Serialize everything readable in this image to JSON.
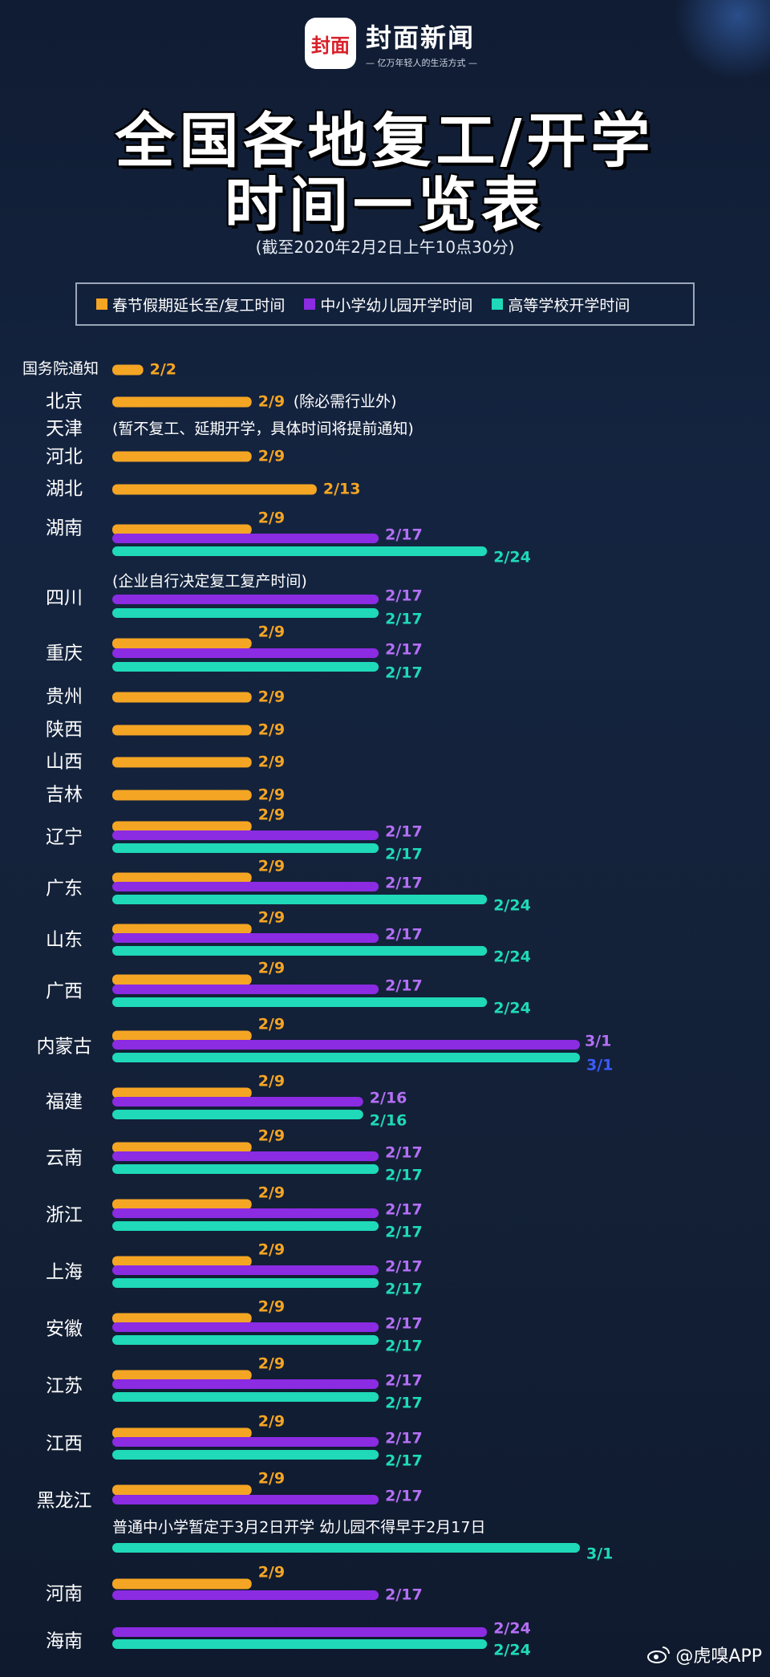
{
  "logo": {
    "mark": "封面",
    "name": "封面新闻",
    "slogan": "— 亿万年轻人的生活方式 —"
  },
  "title": {
    "line1": "全国各地复工/开学",
    "line2": "时间一览表"
  },
  "subtitle": "(截至2020年2月2日上午10点30分)",
  "legend": [
    {
      "label": "春节假期延长至/复工时间",
      "color": "#f5a524"
    },
    {
      "label": "中小学幼儿园开学时间",
      "color": "#8b2be2"
    },
    {
      "label": "高等学校开学时间",
      "color": "#1fd9b8"
    }
  ],
  "watermark": "@虎嗅APP",
  "chart_data": {
    "type": "bar",
    "title": "全国各地复工/开学时间一览表",
    "unit": "date (month/day, 2020)",
    "series": [
      "春节假期延长至/复工时间",
      "中小学幼儿园开学时间",
      "高等学校开学时间"
    ],
    "rows": [
      {
        "region": "国务院通知",
        "bars": [
          {
            "s": 0,
            "date": "2/2",
            "label": "2/2"
          }
        ]
      },
      {
        "region": "北京",
        "bars": [
          {
            "s": 0,
            "date": "2/9",
            "label": "2/9"
          }
        ],
        "note": "(除必需行业外)"
      },
      {
        "region": "天津",
        "bars": [],
        "note": "(暂不复工、延期开学，具体时间将提前通知)"
      },
      {
        "region": "河北",
        "bars": [
          {
            "s": 0,
            "date": "2/9",
            "label": "2/9"
          }
        ]
      },
      {
        "region": "湖北",
        "bars": [
          {
            "s": 0,
            "date": "2/13",
            "label": "2/13"
          }
        ]
      },
      {
        "region": "湖南",
        "bars": [
          {
            "s": 0,
            "date": "2/9",
            "label": "2/9"
          },
          {
            "s": 1,
            "date": "2/17",
            "label": "2/17"
          },
          {
            "s": 2,
            "date": "2/24",
            "label": "2/24"
          }
        ]
      },
      {
        "region": "四川",
        "bars": [
          {
            "s": 1,
            "date": "2/17",
            "label": "2/17"
          },
          {
            "s": 2,
            "date": "2/17",
            "label": "2/17"
          }
        ],
        "note": "(企业自行决定复工复产时间)"
      },
      {
        "region": "重庆",
        "bars": [
          {
            "s": 0,
            "date": "2/9",
            "label": "2/9"
          },
          {
            "s": 1,
            "date": "2/17",
            "label": "2/17"
          },
          {
            "s": 2,
            "date": "2/17",
            "label": "2/17"
          }
        ]
      },
      {
        "region": "贵州",
        "bars": [
          {
            "s": 0,
            "date": "2/9",
            "label": "2/9"
          }
        ]
      },
      {
        "region": "陕西",
        "bars": [
          {
            "s": 0,
            "date": "2/9",
            "label": "2/9"
          }
        ]
      },
      {
        "region": "山西",
        "bars": [
          {
            "s": 0,
            "date": "2/9",
            "label": "2/9"
          }
        ]
      },
      {
        "region": "吉林",
        "bars": [
          {
            "s": 0,
            "date": "2/9",
            "label": "2/9"
          }
        ]
      },
      {
        "region": "辽宁",
        "bars": [
          {
            "s": 0,
            "date": "2/9",
            "label": "2/9"
          },
          {
            "s": 1,
            "date": "2/17",
            "label": "2/17"
          },
          {
            "s": 2,
            "date": "2/17",
            "label": "2/17"
          }
        ]
      },
      {
        "region": "广东",
        "bars": [
          {
            "s": 0,
            "date": "2/9",
            "label": "2/9"
          },
          {
            "s": 1,
            "date": "2/17",
            "label": "2/17"
          },
          {
            "s": 2,
            "date": "2/24",
            "label": "2/24"
          }
        ]
      },
      {
        "region": "山东",
        "bars": [
          {
            "s": 0,
            "date": "2/9",
            "label": "2/9"
          },
          {
            "s": 1,
            "date": "2/17",
            "label": "2/17"
          },
          {
            "s": 2,
            "date": "2/24",
            "label": "2/24"
          }
        ]
      },
      {
        "region": "广西",
        "bars": [
          {
            "s": 0,
            "date": "2/9",
            "label": "2/9"
          },
          {
            "s": 1,
            "date": "2/17",
            "label": "2/17"
          },
          {
            "s": 2,
            "date": "2/24",
            "label": "2/24"
          }
        ]
      },
      {
        "region": "内蒙古",
        "bars": [
          {
            "s": 0,
            "date": "2/9",
            "label": "2/9"
          },
          {
            "s": 1,
            "date": "3/1",
            "label": "3/1"
          },
          {
            "s": 2,
            "date": "3/1",
            "label": "3/1"
          }
        ]
      },
      {
        "region": "福建",
        "bars": [
          {
            "s": 0,
            "date": "2/9",
            "label": "2/9"
          },
          {
            "s": 1,
            "date": "2/16",
            "label": "2/16"
          },
          {
            "s": 2,
            "date": "2/16",
            "label": "2/16"
          }
        ]
      },
      {
        "region": "云南",
        "bars": [
          {
            "s": 0,
            "date": "2/9",
            "label": "2/9"
          },
          {
            "s": 1,
            "date": "2/17",
            "label": "2/17"
          },
          {
            "s": 2,
            "date": "2/17",
            "label": "2/17"
          }
        ]
      },
      {
        "region": "浙江",
        "bars": [
          {
            "s": 0,
            "date": "2/9",
            "label": "2/9"
          },
          {
            "s": 1,
            "date": "2/17",
            "label": "2/17"
          },
          {
            "s": 2,
            "date": "2/17",
            "label": "2/17"
          }
        ]
      },
      {
        "region": "上海",
        "bars": [
          {
            "s": 0,
            "date": "2/9",
            "label": "2/9"
          },
          {
            "s": 1,
            "date": "2/17",
            "label": "2/17"
          },
          {
            "s": 2,
            "date": "2/17",
            "label": "2/17"
          }
        ]
      },
      {
        "region": "安徽",
        "bars": [
          {
            "s": 0,
            "date": "2/9",
            "label": "2/9"
          },
          {
            "s": 1,
            "date": "2/17",
            "label": "2/17"
          },
          {
            "s": 2,
            "date": "2/17",
            "label": "2/17"
          }
        ]
      },
      {
        "region": "江苏",
        "bars": [
          {
            "s": 0,
            "date": "2/9",
            "label": "2/9"
          },
          {
            "s": 1,
            "date": "2/17",
            "label": "2/17"
          },
          {
            "s": 2,
            "date": "2/17",
            "label": "2/17"
          }
        ]
      },
      {
        "region": "江西",
        "bars": [
          {
            "s": 0,
            "date": "2/9",
            "label": "2/9"
          },
          {
            "s": 1,
            "date": "2/17",
            "label": "2/17"
          },
          {
            "s": 2,
            "date": "2/17",
            "label": "2/17"
          }
        ]
      },
      {
        "region": "黑龙江",
        "bars": [
          {
            "s": 0,
            "date": "2/9",
            "label": "2/9"
          },
          {
            "s": 1,
            "date": "2/17",
            "label": "2/17"
          },
          {
            "s": 2,
            "date": "3/1",
            "label": "3/1"
          }
        ],
        "note": "普通中小学暂定于3月2日开学 幼儿园不得早于2月17日"
      },
      {
        "region": "河南",
        "bars": [
          {
            "s": 0,
            "date": "2/9",
            "label": "2/9"
          },
          {
            "s": 1,
            "date": "2/17",
            "label": "2/17"
          }
        ]
      },
      {
        "region": "海南",
        "bars": [
          {
            "s": 1,
            "date": "2/24",
            "label": "2/24"
          },
          {
            "s": 2,
            "date": "2/24",
            "label": "2/24"
          }
        ]
      }
    ]
  }
}
